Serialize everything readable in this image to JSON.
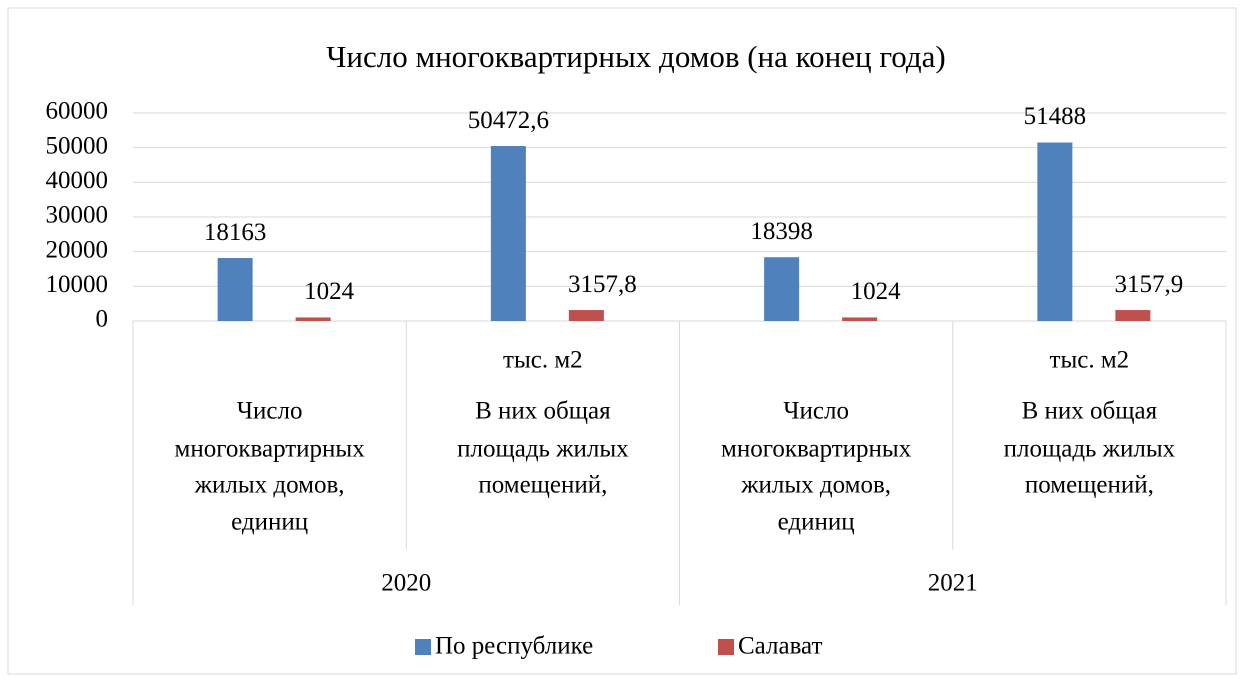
{
  "chart_data": {
    "type": "bar",
    "title": "Число многоквартирных домов (на конец года)",
    "groups": [
      "2020",
      "2021"
    ],
    "categories": [
      [
        "Число",
        "многоквартирных",
        "жилых домов,",
        "единиц"
      ],
      [
        "тыс. м2",
        "В них общая",
        "площадь жилых",
        "помещений,"
      ],
      [
        "Число",
        "многоквартирных",
        "жилых домов,",
        "единиц"
      ],
      [
        "тыс. м2",
        "В них общая",
        "площадь жилых",
        "помещений,"
      ]
    ],
    "series": [
      {
        "name": "По республике",
        "color": "#4f81bd",
        "values": [
          18163,
          50472.6,
          18398,
          51488
        ],
        "value_labels": [
          "18163",
          "50472,6",
          "18398",
          "51488"
        ]
      },
      {
        "name": "Салават",
        "color": "#c0504d",
        "values": [
          1024,
          3157.8,
          1024,
          3157.9
        ],
        "value_labels": [
          "1024",
          "3157,8",
          "1024",
          "3157,9"
        ]
      }
    ],
    "ylim": [
      0,
      60000
    ],
    "yticks": [
      0,
      10000,
      20000,
      30000,
      40000,
      50000,
      60000
    ],
    "grid": true,
    "legend": "bottom"
  }
}
